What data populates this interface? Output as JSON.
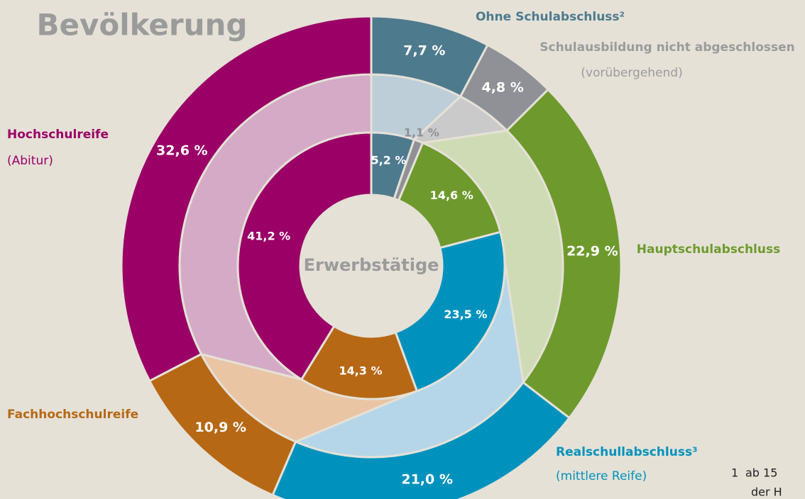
{
  "chart_data": {
    "type": "donut",
    "categories": [
      "Ohne Schulabschluss²",
      "Schulausbildung nicht abgeschlossen",
      "Hauptschulabschluss",
      "Realschullabschluss³",
      "Fachhochschulreife",
      "Hochschulreife"
    ],
    "category_notes": [
      null,
      "(vorübergehend)",
      null,
      "(mittlere Reife)",
      null,
      "(Abitur)"
    ],
    "colors": [
      "#4e7a8e",
      "#8f9196",
      "#6e9a2d",
      "#0092bd",
      "#b76815",
      "#9a0066"
    ],
    "light_colors": [
      "#bdced8",
      "#cacaca",
      "#cfdbb4",
      "#b5d6e8",
      "#eac5a4",
      "#d4aac7"
    ],
    "label_colors": [
      "#4e7a8e",
      "#9b9b9b",
      "#6e9a2d",
      "#0092bd",
      "#b76815",
      "#9a0066"
    ],
    "series": [
      {
        "name": "Bevölkerung",
        "values": [
          7.7,
          4.8,
          22.9,
          21.0,
          10.9,
          32.6
        ],
        "value_labels": [
          "7,7 %",
          "4,8 %",
          "22,9 %",
          "21,0 %",
          "10,9 %",
          "32,6 %"
        ]
      },
      {
        "name": "Erwerbstätige",
        "values": [
          5.2,
          1.1,
          14.6,
          23.5,
          14.3,
          41.2
        ],
        "value_labels": [
          "5,2 %",
          "1,1 %",
          "14,6 %",
          "23,5 %",
          "14,3 %",
          "41,2 %"
        ]
      }
    ],
    "footnote": {
      "number": "1",
      "lines": [
        "ab 15",
        "der H"
      ]
    }
  }
}
